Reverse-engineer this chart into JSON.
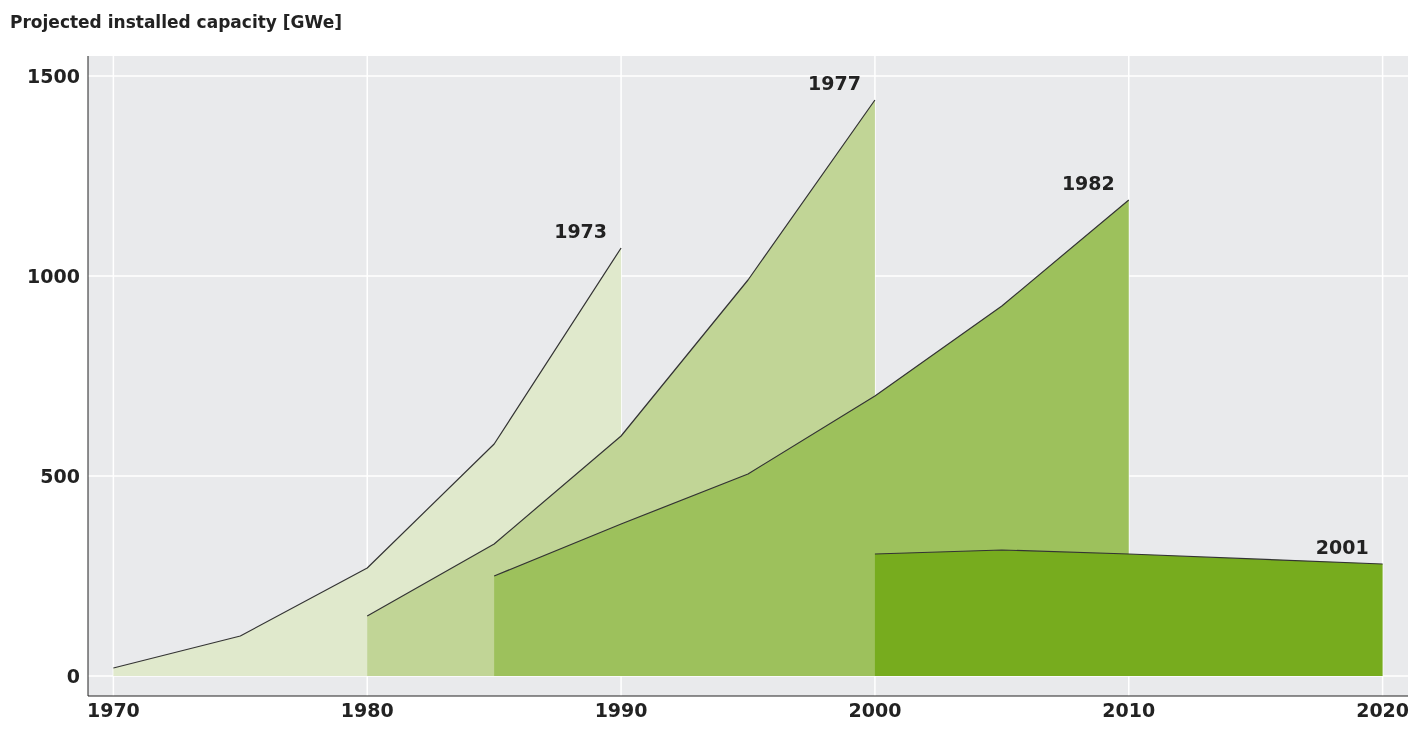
{
  "chart_data": {
    "type": "area",
    "ylabel": "Projected installed capacity [GWe]",
    "series": [
      {
        "name": "1973",
        "color": "#e0e9cc",
        "x": [
          1970,
          1975,
          1980,
          1985,
          1990
        ],
        "values": [
          20,
          100,
          270,
          580,
          1070
        ]
      },
      {
        "name": "1977",
        "color": "#c1d596",
        "x": [
          1980,
          1985,
          1990,
          1995,
          2000
        ],
        "values": [
          150,
          330,
          600,
          990,
          1440
        ]
      },
      {
        "name": "1982",
        "color": "#9dc15c",
        "x": [
          1985,
          1990,
          1995,
          2000,
          2005,
          2010
        ],
        "values": [
          250,
          380,
          505,
          700,
          925,
          1190
        ]
      },
      {
        "name": "2001",
        "color": "#77ac1e",
        "x": [
          2000,
          2005,
          2010,
          2020
        ],
        "values": [
          305,
          315,
          305,
          280
        ]
      }
    ],
    "xlim": [
      1969,
      2021
    ],
    "xticks": [
      1970,
      1980,
      1990,
      2000,
      2010,
      2020
    ],
    "ylim": [
      -50,
      1550
    ],
    "yticks": [
      0,
      500,
      1000,
      1500
    ],
    "grid": true
  }
}
